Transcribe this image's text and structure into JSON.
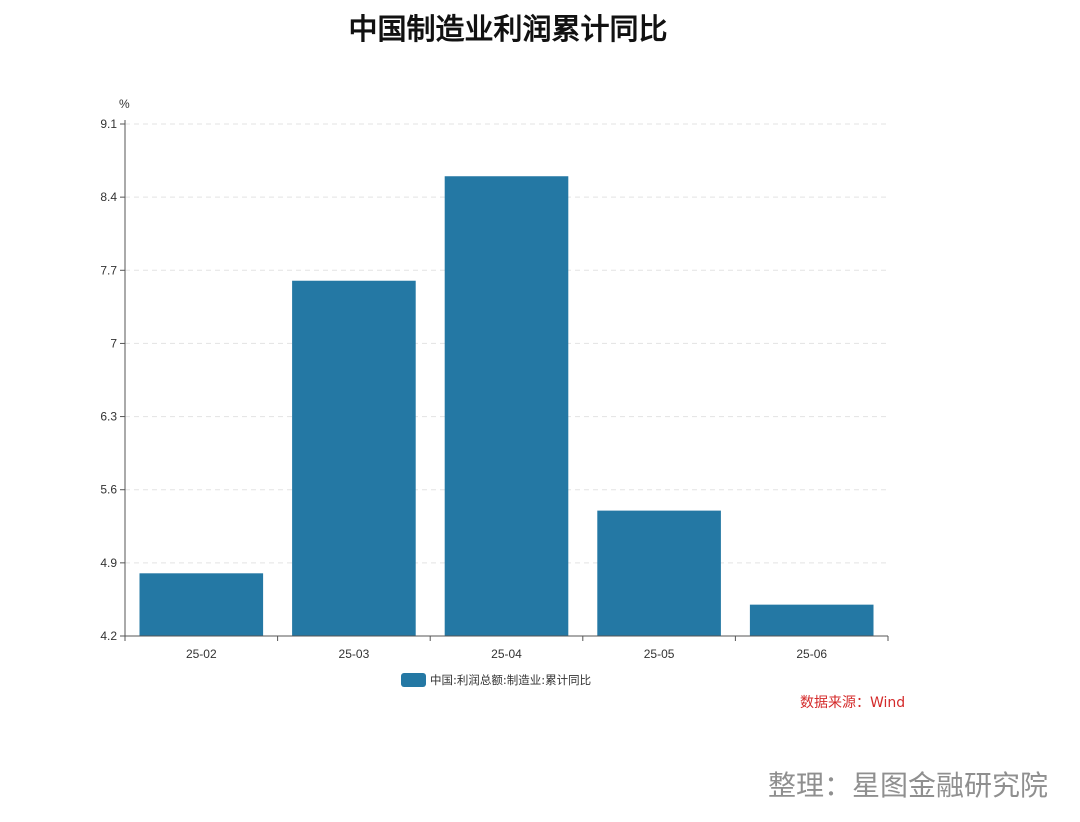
{
  "chart_data": {
    "type": "bar",
    "title": "中国制造业利润累计同比",
    "ylabel": "%",
    "categories": [
      "25-02",
      "25-03",
      "25-04",
      "25-05",
      "25-06"
    ],
    "series": [
      {
        "name": "中国:利润总额:制造业:累计同比",
        "values": [
          4.8,
          7.6,
          8.6,
          5.4,
          4.5
        ]
      }
    ],
    "ylim": [
      4.2,
      9.1
    ],
    "yticks": [
      "4.2",
      "4.9",
      "5.6",
      "6.3",
      "7",
      "7.7",
      "8.4",
      "9.1"
    ],
    "grid": "horizontal dashed",
    "legend_position": "bottom",
    "bar_color": "#2478a4"
  },
  "source_note": "数据来源：Wind",
  "credit": "整理：星图金融研究院"
}
